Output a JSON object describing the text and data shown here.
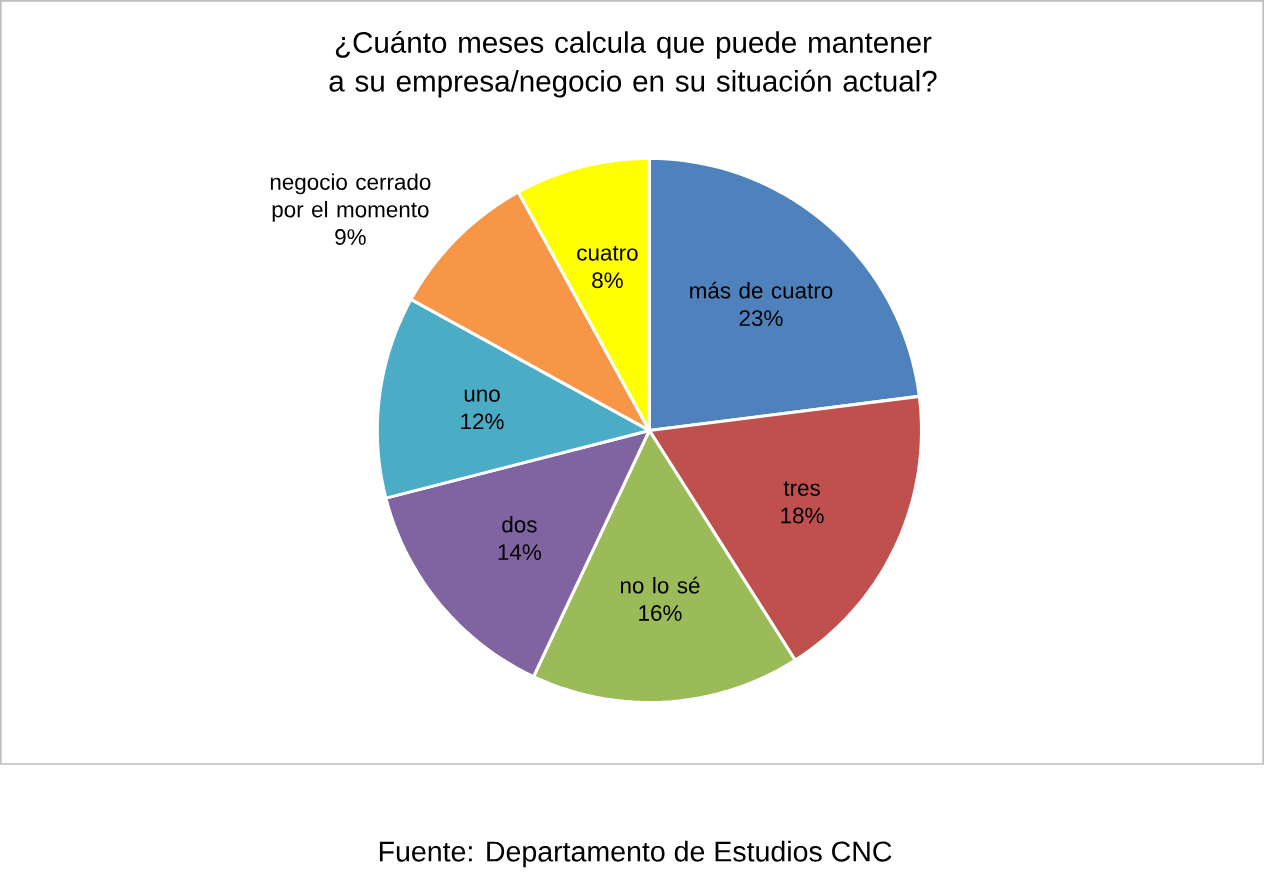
{
  "chart_data": {
    "type": "pie",
    "title": "¿Cuánto meses calcula que puede mantener a su empresa/negocio en su situación actual?",
    "categories": [
      "más de cuatro",
      "tres",
      "no lo sé",
      "dos",
      "uno",
      "negocio cerrado por el momento",
      "cuatro"
    ],
    "values": [
      23,
      18,
      16,
      14,
      12,
      9,
      8
    ],
    "value_labels": [
      "23%",
      "18%",
      "16%",
      "14%",
      "12%",
      "9%",
      "8%"
    ],
    "colors": [
      "#4f81bd",
      "#c0504d",
      "#9bbb59",
      "#8064a2",
      "#4bacc6",
      "#f79646",
      "#ffff00"
    ],
    "annotations": [
      "Fuente: Departamento de Estudios CNC"
    ]
  }
}
